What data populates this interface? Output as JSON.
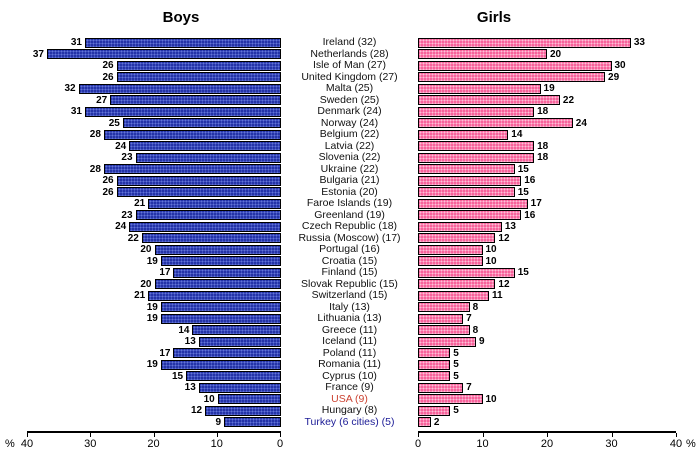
{
  "chart_data": {
    "type": "bar",
    "orientation": "diverging-horizontal",
    "categories": [
      "Ireland (32)",
      "Netherlands (28)",
      "Isle of Man (27)",
      "United Kingdom (27)",
      "Malta (25)",
      "Sweden (25)",
      "Denmark (24)",
      "Norway (24)",
      "Belgium (22)",
      "Latvia (22)",
      "Slovenia (22)",
      "Ukraine (22)",
      "Bulgaria (21)",
      "Estonia (20)",
      "Faroe Islands (19)",
      "Greenland (19)",
      "Czech Republic (18)",
      "Russia (Moscow) (17)",
      "Portugal (16)",
      "Croatia (15)",
      "Finland (15)",
      "Slovak Republic (15)",
      "Switzerland (15)",
      "Italy (13)",
      "Lithuania (13)",
      "Greece (11)",
      "Iceland (11)",
      "Poland (11)",
      "Romania (11)",
      "Cyprus (10)",
      "France (9)",
      "USA (9)",
      "Hungary (8)",
      "Turkey (6 cities) (5)"
    ],
    "series": [
      {
        "name": "Boys",
        "side": "left",
        "bar_color": "#2433a8",
        "values": [
          31,
          37,
          26,
          26,
          32,
          27,
          31,
          25,
          28,
          24,
          23,
          28,
          26,
          26,
          21,
          23,
          24,
          22,
          20,
          19,
          17,
          20,
          21,
          19,
          19,
          14,
          13,
          17,
          19,
          15,
          13,
          10,
          12,
          9
        ]
      },
      {
        "name": "Girls",
        "side": "right",
        "bar_color": "#f7629b",
        "values": [
          33,
          20,
          30,
          29,
          19,
          22,
          18,
          24,
          14,
          18,
          18,
          15,
          16,
          15,
          17,
          16,
          13,
          12,
          10,
          10,
          15,
          12,
          11,
          8,
          7,
          8,
          9,
          5,
          5,
          5,
          7,
          10,
          5,
          2
        ]
      }
    ],
    "label_color_overrides": {
      "USA (9)": "#cc4433",
      "Turkey (6 cities) (5)": "#1b1b96"
    },
    "axes": {
      "percent_symbol": "%",
      "left_ticks": [
        "40",
        "30",
        "20",
        "10",
        "0"
      ],
      "right_ticks": [
        "0",
        "10",
        "20",
        "30",
        "40"
      ],
      "max": 40
    },
    "value_labels_shown": true,
    "grid": false,
    "legend_position": "none (panel titles above each side)"
  }
}
